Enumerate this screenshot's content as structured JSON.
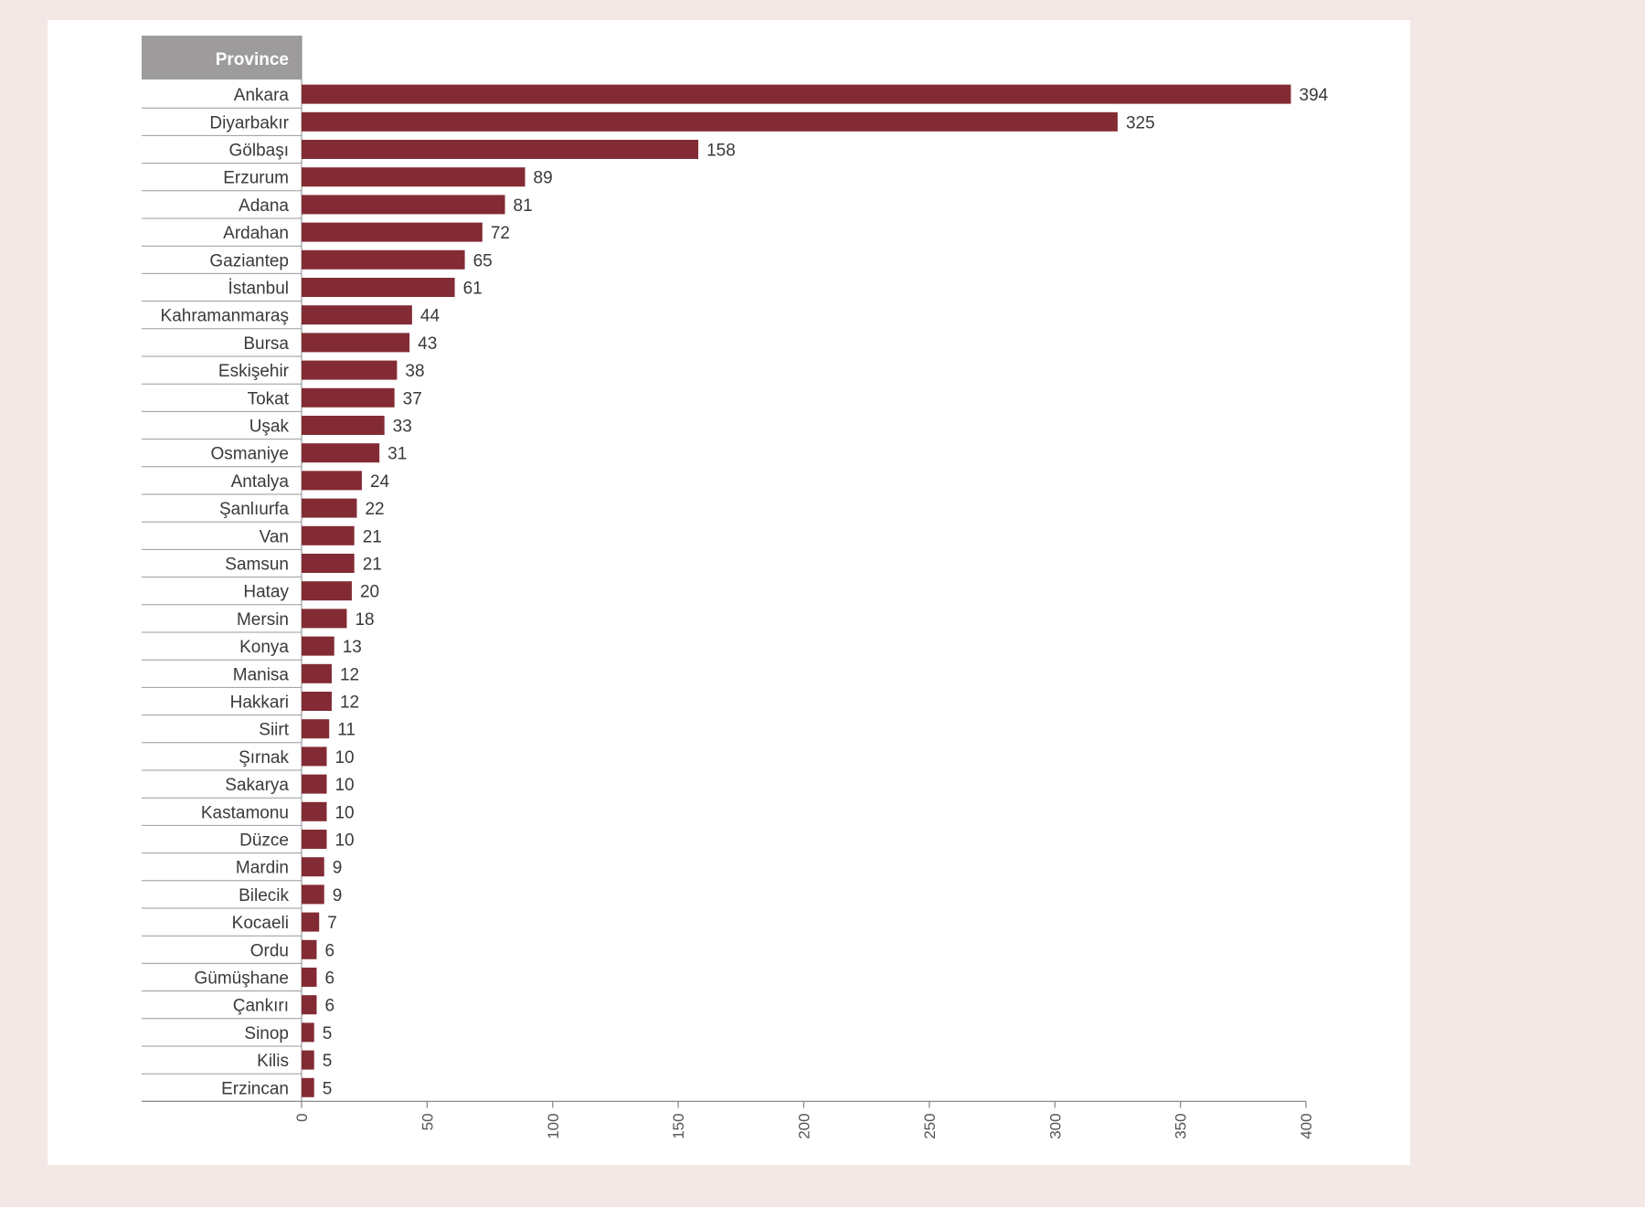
{
  "colors": {
    "bar": "#832b34",
    "header_bg": "#9e9b9c",
    "page_bg": "#f3e8e5",
    "panel_bg": "#ffffff",
    "rule": "#8a8a8a"
  },
  "chart_data": {
    "type": "bar",
    "orientation": "horizontal",
    "category_header": "Province",
    "categories": [
      "Ankara",
      "Diyarbakır",
      "Gölbaşı",
      "Erzurum",
      "Adana",
      "Ardahan",
      "Gaziantep",
      "İstanbul",
      "Kahramanmaraş",
      "Bursa",
      "Eskişehir",
      "Tokat",
      "Uşak",
      "Osmaniye",
      "Antalya",
      "Şanlıurfa",
      "Van",
      "Samsun",
      "Hatay",
      "Mersin",
      "Konya",
      "Manisa",
      "Hakkari",
      "Siirt",
      "Şırnak",
      "Sakarya",
      "Kastamonu",
      "Düzce",
      "Mardin",
      "Bilecik",
      "Kocaeli",
      "Ordu",
      "Gümüşhane",
      "Çankırı",
      "Sinop",
      "Kilis",
      "Erzincan"
    ],
    "values": [
      394,
      325,
      158,
      89,
      81,
      72,
      65,
      61,
      44,
      43,
      38,
      37,
      33,
      31,
      24,
      22,
      21,
      21,
      20,
      18,
      13,
      12,
      12,
      11,
      10,
      10,
      10,
      10,
      9,
      9,
      7,
      6,
      6,
      6,
      5,
      5,
      5
    ],
    "xlim": [
      0,
      400
    ],
    "xticks": [
      0,
      50,
      100,
      150,
      200,
      250,
      300,
      350,
      400
    ],
    "tick_label_rotation": "vertical",
    "data_labels": true,
    "grid": false,
    "legend": "none"
  }
}
